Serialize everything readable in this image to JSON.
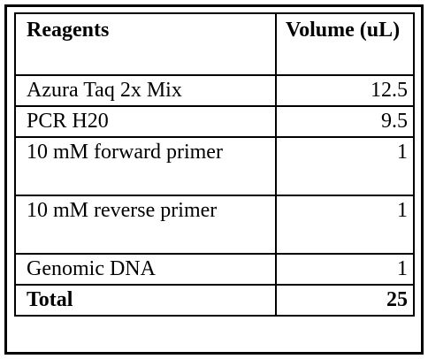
{
  "table": {
    "headers": [
      "Reagents",
      "Volume (uL)"
    ],
    "rows": [
      {
        "reagent": "Azura Taq 2x Mix",
        "volume": "12.5"
      },
      {
        "reagent": "PCR H20",
        "volume": "9.5"
      },
      {
        "reagent": "10 mM forward primer",
        "volume": "1"
      },
      {
        "reagent": "10 mM reverse primer",
        "volume": "1"
      },
      {
        "reagent": "Genomic DNA",
        "volume": "1"
      }
    ],
    "total": {
      "label": "Total",
      "volume": "25"
    }
  }
}
